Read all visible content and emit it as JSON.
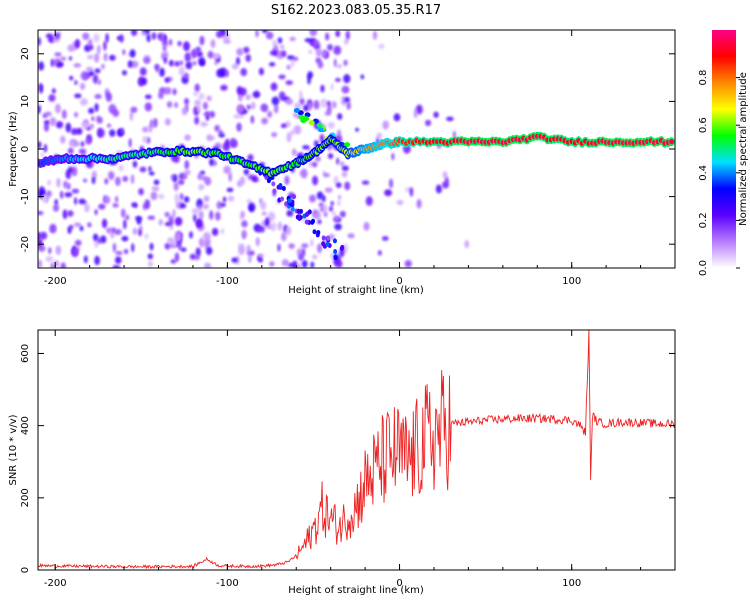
{
  "title": "S162.2023.083.05.35.R17",
  "colors": {
    "snr_line": "#ee2222",
    "axis": "#000000"
  },
  "chart_data": [
    {
      "type": "heatmap",
      "xlabel": "Height of straight line (km)",
      "ylabel": "Frequency (Hz)",
      "xlim": [
        -210,
        160
      ],
      "ylim": [
        -25,
        25
      ],
      "x_ticks": [
        -200,
        -100,
        0,
        100
      ],
      "y_ticks": [
        -20,
        -10,
        0,
        10,
        20
      ],
      "colorbar": {
        "label": "Normalized spectral amplitude",
        "range": [
          0.0,
          1.0
        ],
        "ticks": [
          "0.0",
          "0.2",
          "0.4",
          "0.6",
          "0.8"
        ],
        "ramp": [
          "#ffffff",
          "#b77cff",
          "#5a00ff",
          "#0000ff",
          "#00e0ff",
          "#00ff00",
          "#ffff00",
          "#ff8800",
          "#ff0000",
          "#ff0088"
        ]
      },
      "ridge": [
        {
          "x": -210,
          "f": -3,
          "a": 0.35
        },
        {
          "x": -195,
          "f": -2,
          "a": 0.4
        },
        {
          "x": -180,
          "f": -2,
          "a": 0.45
        },
        {
          "x": -165,
          "f": -2,
          "a": 0.5
        },
        {
          "x": -150,
          "f": -1,
          "a": 0.5
        },
        {
          "x": -135,
          "f": -0.5,
          "a": 0.55
        },
        {
          "x": -120,
          "f": -0.5,
          "a": 0.6
        },
        {
          "x": -105,
          "f": -1,
          "a": 0.55
        },
        {
          "x": -90,
          "f": -3,
          "a": 0.55
        },
        {
          "x": -75,
          "f": -5,
          "a": 0.6
        },
        {
          "x": -60,
          "f": -3,
          "a": 0.55
        },
        {
          "x": -50,
          "f": -1,
          "a": 0.6
        },
        {
          "x": -40,
          "f": 2,
          "a": 0.6
        },
        {
          "x": -30,
          "f": -1,
          "a": 0.65
        },
        {
          "x": -20,
          "f": 0,
          "a": 0.75
        },
        {
          "x": -10,
          "f": 1,
          "a": 0.8
        },
        {
          "x": 0,
          "f": 1.5,
          "a": 0.85
        },
        {
          "x": 20,
          "f": 1.5,
          "a": 0.9
        },
        {
          "x": 40,
          "f": 1.5,
          "a": 0.95
        },
        {
          "x": 60,
          "f": 1.5,
          "a": 0.95
        },
        {
          "x": 80,
          "f": 2.5,
          "a": 0.95
        },
        {
          "x": 100,
          "f": 1.5,
          "a": 0.9
        },
        {
          "x": 120,
          "f": 1.5,
          "a": 0.95
        },
        {
          "x": 140,
          "f": 1.5,
          "a": 0.95
        },
        {
          "x": 160,
          "f": 1.5,
          "a": 0.95
        }
      ]
    },
    {
      "type": "line",
      "xlabel": "Height of straight line (km)",
      "ylabel": "SNR (10 * v/v)",
      "xlim": [
        -210,
        160
      ],
      "ylim": [
        0,
        665
      ],
      "x_ticks": [
        -200,
        -100,
        0,
        100
      ],
      "y_ticks": [
        0,
        200,
        400,
        600
      ],
      "series": [
        {
          "x": [
            -210,
            -180,
            -150,
            -120,
            -112,
            -105,
            -90,
            -80,
            -72,
            -65,
            -60,
            -55,
            -50,
            -45,
            -40,
            -35,
            -30,
            -25,
            -20,
            -15,
            -10,
            -5,
            0,
            5,
            10,
            15,
            20,
            25,
            30,
            40,
            50,
            60,
            70,
            80,
            90,
            100,
            105,
            108,
            110,
            111,
            112,
            115,
            120,
            130,
            140,
            150,
            160
          ],
          "y": [
            12,
            10,
            9,
            10,
            30,
            12,
            10,
            11,
            14,
            22,
            40,
            70,
            110,
            170,
            140,
            120,
            150,
            180,
            240,
            270,
            300,
            320,
            320,
            300,
            330,
            360,
            370,
            390,
            405,
            410,
            415,
            418,
            420,
            420,
            418,
            415,
            400,
            380,
            660,
            240,
            430,
            410,
            405,
            410,
            408,
            405,
            405
          ]
        }
      ]
    }
  ]
}
